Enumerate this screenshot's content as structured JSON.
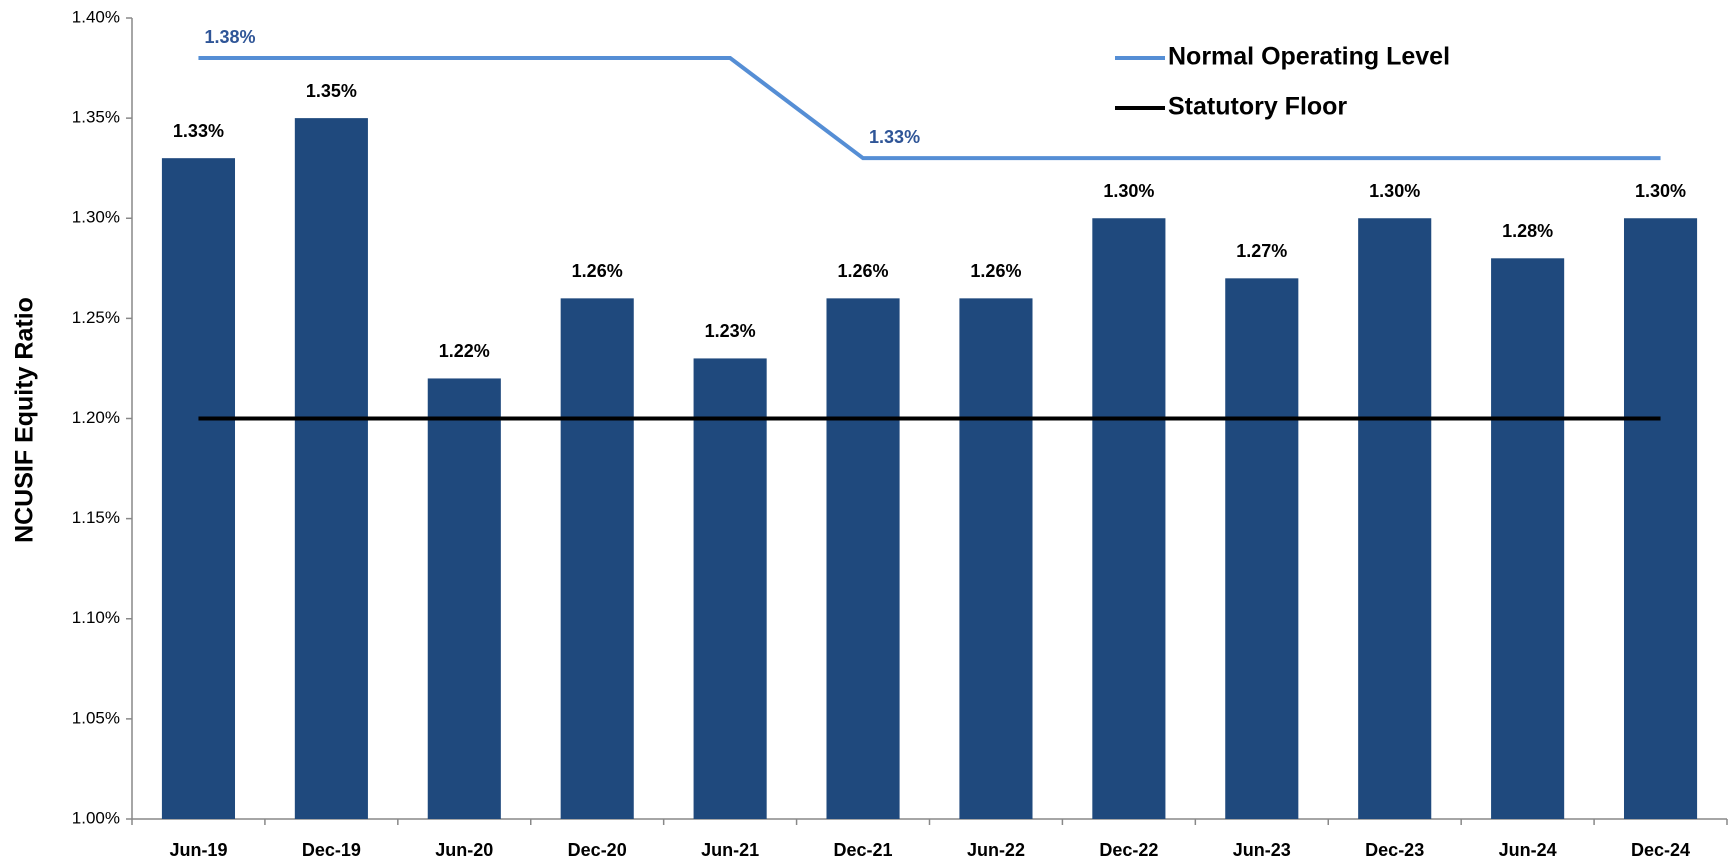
{
  "chart_data": {
    "type": "bar",
    "y_label": "NCUSIF Equity Ratio",
    "categories": [
      "Jun-19",
      "Dec-19",
      "Jun-20",
      "Dec-20",
      "Jun-21",
      "Dec-21",
      "Jun-22",
      "Dec-22",
      "Jun-23",
      "Dec-23",
      "Jun-24",
      "Dec-24"
    ],
    "series": [
      {
        "type": "bar",
        "color": "#1f497d",
        "values": [
          1.33,
          1.35,
          1.22,
          1.26,
          1.23,
          1.26,
          1.26,
          1.3,
          1.27,
          1.3,
          1.28,
          1.3
        ],
        "value_labels": [
          "1.33%",
          "1.35%",
          "1.22%",
          "1.26%",
          "1.23%",
          "1.26%",
          "1.26%",
          "1.30%",
          "1.27%",
          "1.30%",
          "1.28%",
          "1.30%"
        ]
      },
      {
        "type": "line",
        "name": "Normal Operating Level",
        "color": "#558ed5",
        "label_color": "#2f5597",
        "values": [
          1.38,
          1.38,
          1.38,
          1.38,
          1.38,
          1.33,
          1.33,
          1.33,
          1.33,
          1.33,
          1.33,
          1.33
        ],
        "value_labels": [
          "1.38%",
          null,
          null,
          null,
          null,
          "1.33%",
          null,
          null,
          null,
          null,
          null,
          null
        ]
      },
      {
        "type": "line",
        "name": "Statutory Floor",
        "color": "#000000",
        "values": [
          1.2,
          1.2,
          1.2,
          1.2,
          1.2,
          1.2,
          1.2,
          1.2,
          1.2,
          1.2,
          1.2,
          1.2
        ]
      }
    ],
    "ylim": [
      1.0,
      1.4
    ],
    "yticks": [
      {
        "value": 1.0,
        "label": "1.00%"
      },
      {
        "value": 1.05,
        "label": "1.05%"
      },
      {
        "value": 1.1,
        "label": "1.10%"
      },
      {
        "value": 1.15,
        "label": "1.15%"
      },
      {
        "value": 1.2,
        "label": "1.20%"
      },
      {
        "value": 1.25,
        "label": "1.25%"
      },
      {
        "value": 1.3,
        "label": "1.30%"
      },
      {
        "value": 1.35,
        "label": "1.35%"
      },
      {
        "value": 1.4,
        "label": "1.40%"
      }
    ],
    "grid": false,
    "legend": "top-right"
  }
}
